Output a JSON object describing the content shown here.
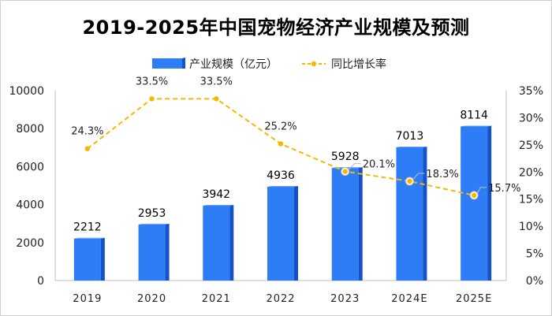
{
  "chart_data": {
    "type": "bar+line",
    "title": "2019-2025年中国宠物经济产业规模及预测",
    "categories": [
      "2019",
      "2020",
      "2021",
      "2022",
      "2023",
      "2024E",
      "2025E"
    ],
    "series": [
      {
        "name": "产业规模（亿元）",
        "type": "bar",
        "axis": "left",
        "values": [
          2212,
          2953,
          3942,
          4936,
          5928,
          7013,
          8114
        ],
        "labels": [
          "2212",
          "2953",
          "3942",
          "4936",
          "5928",
          "7013",
          "8114"
        ],
        "color": "#2979ff"
      },
      {
        "name": "同比增长率",
        "type": "line",
        "axis": "right",
        "values": [
          24.3,
          33.5,
          33.5,
          25.2,
          20.1,
          18.3,
          15.7
        ],
        "labels": [
          "24.3%",
          "33.5%",
          "33.5%",
          "25.2%",
          "20.1%",
          "18.3%",
          "15.7%"
        ],
        "color": "#f5b800"
      }
    ],
    "left_axis": {
      "min": 0,
      "max": 10000,
      "ticks": [
        "0",
        "2000",
        "4000",
        "6000",
        "8000",
        "10000"
      ]
    },
    "right_axis": {
      "min": 0,
      "max": 35,
      "ticks": [
        "0%",
        "5%",
        "10%",
        "15%",
        "20%",
        "25%",
        "30%",
        "35%"
      ]
    },
    "grid": false,
    "legend_position": "top"
  }
}
